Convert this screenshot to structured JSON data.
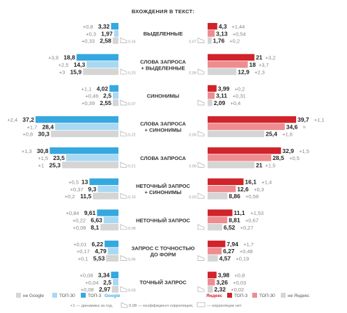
{
  "chart_data": {
    "type": "bar",
    "title": "ВХОЖДЕНИЯ В ТЕКСТ:",
    "colors": {
      "google_top3": "#35a8e0",
      "google_top30": "#a9d9f2",
      "google_other": "#d5d5d5",
      "yandex_top3": "#d0232a",
      "yandex_top30": "#ee8c8f",
      "yandex_other": "#d5d5d5",
      "delta": "#8a8a8a"
    },
    "categories": [
      {
        "label": [
          "ВЫДЕЛЕННЫЕ"
        ],
        "google": {
          "values": [
            3.32,
            1.97,
            2.58
          ],
          "deltas": [
            "+0,8",
            "+0,3",
            "+0,33"
          ],
          "labels": [
            "3,32",
            "1,97",
            "2,58"
          ],
          "corr": "0,16"
        },
        "yandex": {
          "values": [
            4.3,
            3.13,
            1.76
          ],
          "deltas": [
            "+1,44",
            "+0,54",
            "+0,2"
          ],
          "labels": [
            "4,3",
            "3,13",
            "1,76"
          ],
          "corr": "0,07"
        }
      },
      {
        "label": [
          "СЛОВА ЗАПРОСА",
          "+ ВЫДЕЛЕННЫЕ"
        ],
        "google": {
          "values": [
            18.8,
            14.3,
            15.9
          ],
          "deltas": [
            "+3,8",
            "+2,5",
            "+3"
          ],
          "labels": [
            "18,8",
            "14,3",
            "15,9"
          ],
          "corr": "0,20"
        },
        "yandex": {
          "values": [
            21,
            18,
            12.9
          ],
          "deltas": [
            "+3,2",
            "+3,7",
            "+2,3"
          ],
          "labels": [
            "21",
            "18",
            "12,9"
          ],
          "corr": "0,06"
        }
      },
      {
        "label": [
          "СИНОНИМЫ"
        ],
        "google": {
          "values": [
            4.02,
            2.5,
            2.55
          ],
          "deltas": [
            "+1,1",
            "+0,46",
            "+0,39"
          ],
          "labels": [
            "4,02",
            "2,5",
            "2,55"
          ],
          "corr": "0,07"
        },
        "yandex": {
          "values": [
            3.99,
            3.11,
            2.09
          ],
          "deltas": [
            "+0,2",
            "+0,31",
            "+0,4"
          ],
          "labels": [
            "3,99",
            "3,11",
            "2,09"
          ],
          "corr": ""
        }
      },
      {
        "label": [
          "СЛОВА ЗАПРОСА",
          "+ СИНОНИМЫ"
        ],
        "google": {
          "values": [
            37.2,
            28.4,
            30.3
          ],
          "deltas": [
            "+2,4",
            "+1,7",
            "+0,8"
          ],
          "labels": [
            "37,2",
            "28,4",
            "30,3"
          ],
          "corr": "0,22"
        },
        "yandex": {
          "values": [
            39.7,
            34.6,
            25.4
          ],
          "deltas": [
            "+1,1",
            "=",
            "+1,6"
          ],
          "labels": [
            "39,7",
            "34,6",
            "25,4"
          ],
          "corr": "0,05"
        }
      },
      {
        "label": [
          "СЛОВА ЗАПРОСА"
        ],
        "google": {
          "values": [
            30.8,
            23.5,
            25.3
          ],
          "deltas": [
            "+1,3",
            "+1,5",
            "+1"
          ],
          "labels": [
            "30,8",
            "23,5",
            "25,3"
          ],
          "corr": "0,21"
        },
        "yandex": {
          "values": [
            32.9,
            28.5,
            21
          ],
          "deltas": [
            "+1,5",
            "+0,5",
            "+1,5"
          ],
          "labels": [
            "32,9",
            "28,5",
            "21"
          ],
          "corr": "0,06"
        }
      },
      {
        "label": [
          "НЕТОЧНЫЙ ЗАПРОС",
          "+ СИНОНИМЫ"
        ],
        "google": {
          "values": [
            13,
            9.3,
            11.5
          ],
          "deltas": [
            "+0,5",
            "+0,37",
            "+0,2"
          ],
          "labels": [
            "13",
            "9,3",
            "11,5"
          ],
          "corr": "0,10"
        },
        "yandex": {
          "values": [
            16.1,
            12.6,
            8.86
          ],
          "deltas": [
            "+1,4",
            "+0,3",
            "+0,58"
          ],
          "labels": [
            "16,1",
            "12,6",
            "8,86"
          ],
          "corr": "0,03"
        }
      },
      {
        "label": [
          "НЕТОЧНЫЙ ЗАПРОС"
        ],
        "google": {
          "values": [
            9.61,
            6.63,
            8.1
          ],
          "deltas": [
            "+0,84",
            "+0,22",
            "+0,08"
          ],
          "labels": [
            "9,61",
            "6,63",
            "8,1"
          ],
          "corr": "0,08"
        },
        "yandex": {
          "values": [
            11.1,
            8.81,
            6.52
          ],
          "deltas": [
            "+1,53",
            "+0,67",
            "+0,27"
          ],
          "labels": [
            "11,1",
            "8,81",
            "6,52"
          ],
          "corr": ""
        }
      },
      {
        "label": [
          "ЗАПРОС С ТОЧНОСТЬЮ",
          "ДО ФОРМ"
        ],
        "google": {
          "values": [
            6.22,
            4.79,
            5.53
          ],
          "deltas": [
            "+0,01",
            "+0,17",
            "+0,1"
          ],
          "labels": [
            "6,22",
            "4,79",
            "5,53"
          ],
          "corr": "0,06"
        },
        "yandex": {
          "values": [
            7.94,
            6.27,
            4.57
          ],
          "deltas": [
            "+1,7",
            "+0,48",
            "+0,19"
          ],
          "labels": [
            "7,94",
            "6,27",
            "4,57"
          ],
          "corr": ""
        }
      },
      {
        "label": [
          "ТОЧНЫЙ ЗАПРОС"
        ],
        "google": {
          "values": [
            3.34,
            2.5,
            2.97
          ],
          "deltas": [
            "+0,08",
            "+0,04",
            "+0,08"
          ],
          "labels": [
            "3,34",
            "2,5",
            "2,97"
          ],
          "corr": "0,03"
        },
        "yandex": {
          "values": [
            3.98,
            3.26,
            2.32
          ],
          "deltas": [
            "+0,8",
            "+0,03",
            "+0,02"
          ],
          "labels": [
            "3,98",
            "3,26",
            "2,32"
          ],
          "corr": ""
        }
      }
    ],
    "legend_left": {
      "other": "не Google",
      "top30": "ТОП-30",
      "top3": "ТОП-3",
      "brand": "Google"
    },
    "legend_right": {
      "brand": "Яндекс",
      "top3": "ТОП-3",
      "top30": "ТОП-30",
      "other": "не Яндекс"
    },
    "footnote": {
      "delta": "+1 — динамика за год,",
      "corr": "0,08 — коэффициент корреляции,",
      "nocorr": "— корреляции нет"
    }
  }
}
